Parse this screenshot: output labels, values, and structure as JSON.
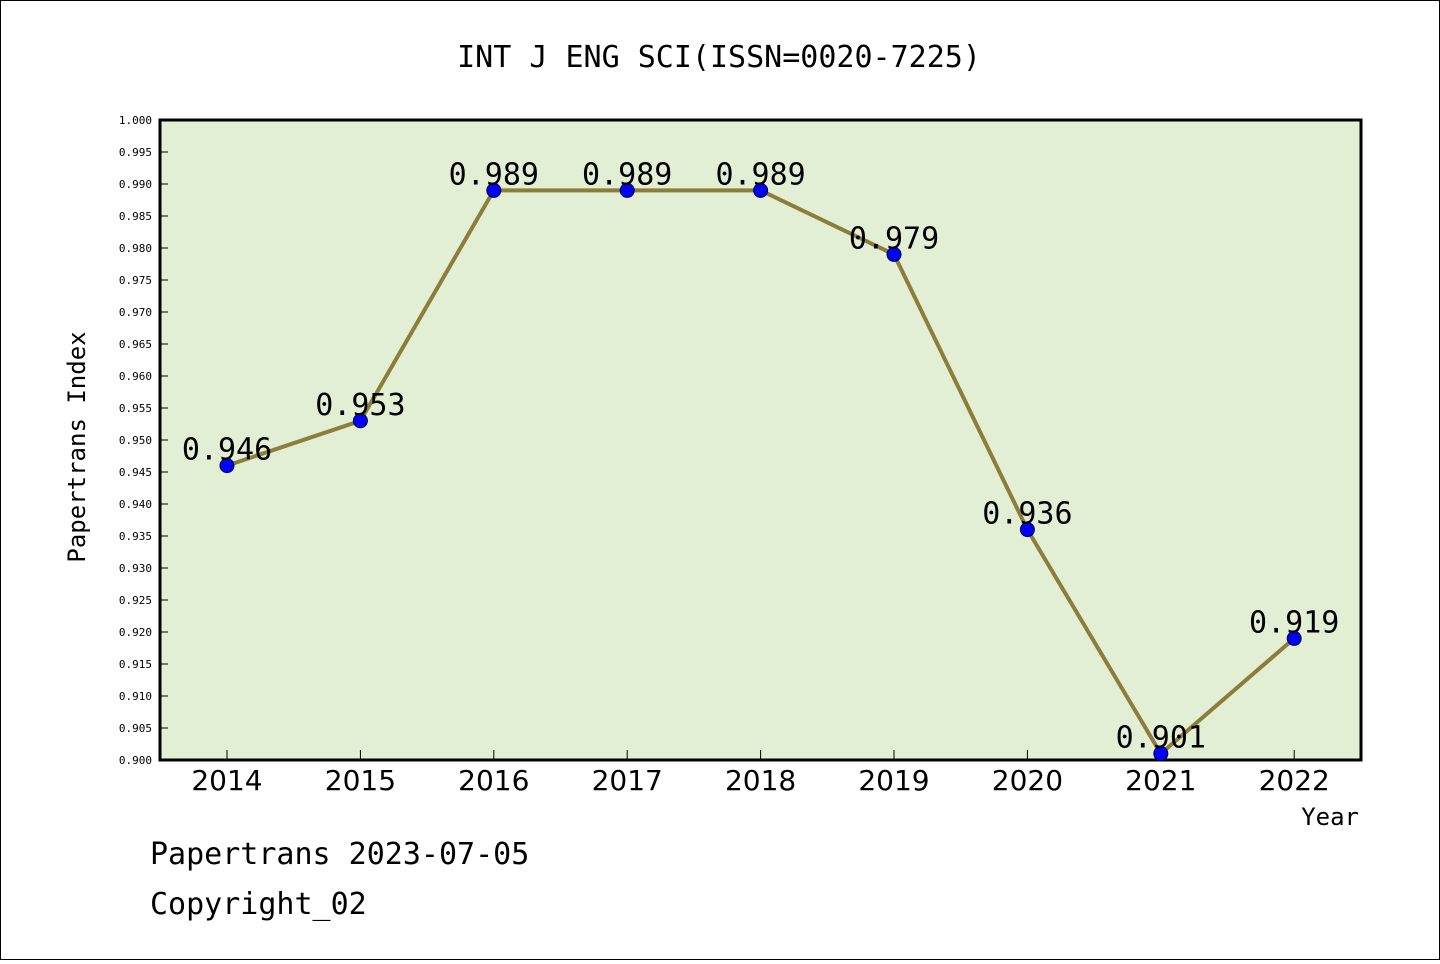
{
  "chart_data": {
    "type": "line",
    "title": "INT J ENG SCI(ISSN=0020-7225)",
    "xlabel": "Year",
    "ylabel": "Papertrans Index",
    "x": [
      "2014",
      "2015",
      "2016",
      "2017",
      "2018",
      "2019",
      "2020",
      "2021",
      "2022"
    ],
    "series": [
      {
        "values": [
          0.946,
          0.953,
          0.989,
          0.989,
          0.989,
          0.979,
          0.936,
          0.901,
          0.919
        ],
        "labels": [
          "0.946",
          "0.953",
          "0.989",
          "0.989",
          "0.989",
          "0.979",
          "0.936",
          "0.901",
          "0.919"
        ],
        "line_color": "#8b7d3a",
        "marker_color": "#0000ff"
      }
    ],
    "ylim": [
      0.9,
      1.0
    ],
    "yticks": [
      "0.900",
      "0.905",
      "0.910",
      "0.915",
      "0.920",
      "0.925",
      "0.930",
      "0.935",
      "0.940",
      "0.945",
      "0.950",
      "0.955",
      "0.960",
      "0.965",
      "0.970",
      "0.975",
      "0.980",
      "0.985",
      "0.990",
      "0.995",
      "1.000"
    ],
    "plot_background": "#e2efd5",
    "grid": false,
    "legend": "none"
  },
  "footer": {
    "line1": "Papertrans 2023-07-05",
    "line2": "Copyright_02"
  }
}
